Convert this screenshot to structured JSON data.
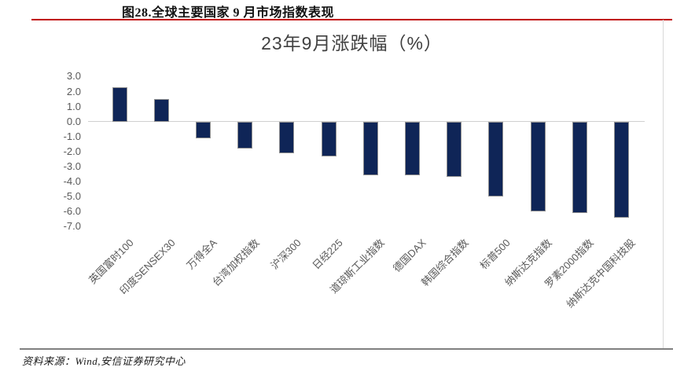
{
  "header": {
    "caption": "图28.全球主要国家 9 月市场指数表现"
  },
  "chart_data": {
    "type": "bar",
    "title": "23年9月涨跌幅（%）",
    "categories": [
      "英国富时100",
      "印度SENSEX30",
      "万得全A",
      "台湾加权指数",
      "沪深300",
      "日经225",
      "道琼斯工业指数",
      "德国DAX",
      "韩国综合指数",
      "标普500",
      "纳斯达克指数",
      "罗素2000指数",
      "纳斯达克中国科技股"
    ],
    "values": [
      2.3,
      1.5,
      -1.1,
      -1.8,
      -2.1,
      -2.3,
      -3.6,
      -3.6,
      -3.7,
      -5.0,
      -6.0,
      -6.1,
      -6.4
    ],
    "ytick_labels": [
      "3.0",
      "2.0",
      "1.0",
      "0.0",
      "-1.0",
      "-2.0",
      "-3.0",
      "-4.0",
      "-5.0",
      "-6.0",
      "-7.0"
    ],
    "yticks": [
      3,
      2,
      1,
      0,
      -1,
      -2,
      -3,
      -4,
      -5,
      -6,
      -7
    ],
    "ylim": [
      -7.0,
      3.0
    ],
    "xlabel": "",
    "ylabel": "",
    "grid": "zero-line-only",
    "legend": "none",
    "x_label_rotation_deg": 45
  },
  "footer": {
    "source": "资料来源：Wind,安信证券研究中心"
  },
  "colors": {
    "caption_rule_red": "#c00000",
    "bar_fill": "#0f2557",
    "bar_border": "#909090",
    "axis_text": "#595959",
    "chart_title_text": "#404040",
    "zero_line": "#d0d0d0",
    "footer_rule": "#808080"
  }
}
